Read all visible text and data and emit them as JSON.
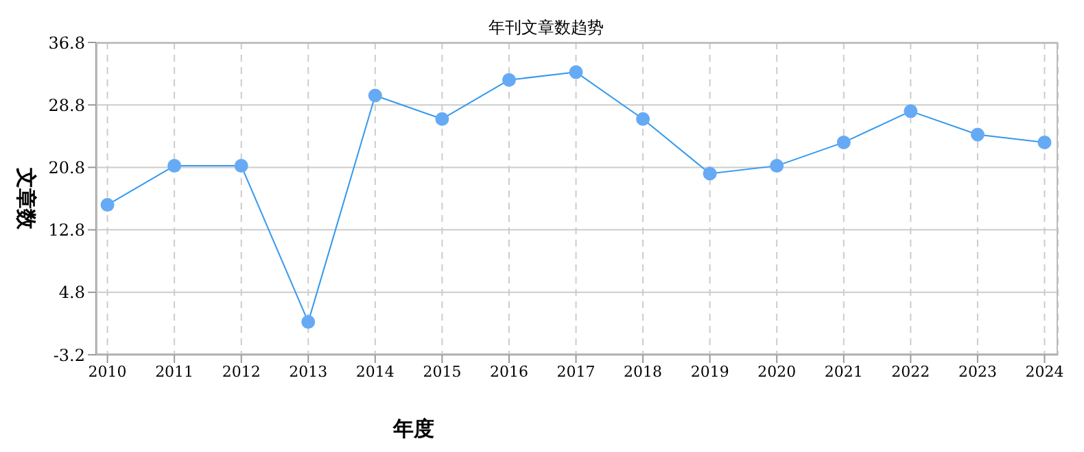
{
  "chart_data": {
    "type": "line",
    "title": "年刊文章数趋势",
    "xlabel": "年度",
    "ylabel": "文章数",
    "categories": [
      "2010",
      "2011",
      "2012",
      "2013",
      "2014",
      "2015",
      "2016",
      "2017",
      "2018",
      "2019",
      "2020",
      "2021",
      "2022",
      "2023",
      "2024"
    ],
    "series": [
      {
        "color": "#3399ee",
        "values": [
          16,
          21,
          21,
          1,
          30,
          27,
          32,
          33,
          27,
          20,
          21,
          24,
          28,
          25,
          24
        ]
      }
    ],
    "ylim": [
      -3.2,
      36.8
    ],
    "yticks": [
      -3.2,
      4.8,
      12.8,
      20.8,
      28.8,
      36.8
    ],
    "grid": true,
    "marker": "circle",
    "line_style": "solid"
  }
}
